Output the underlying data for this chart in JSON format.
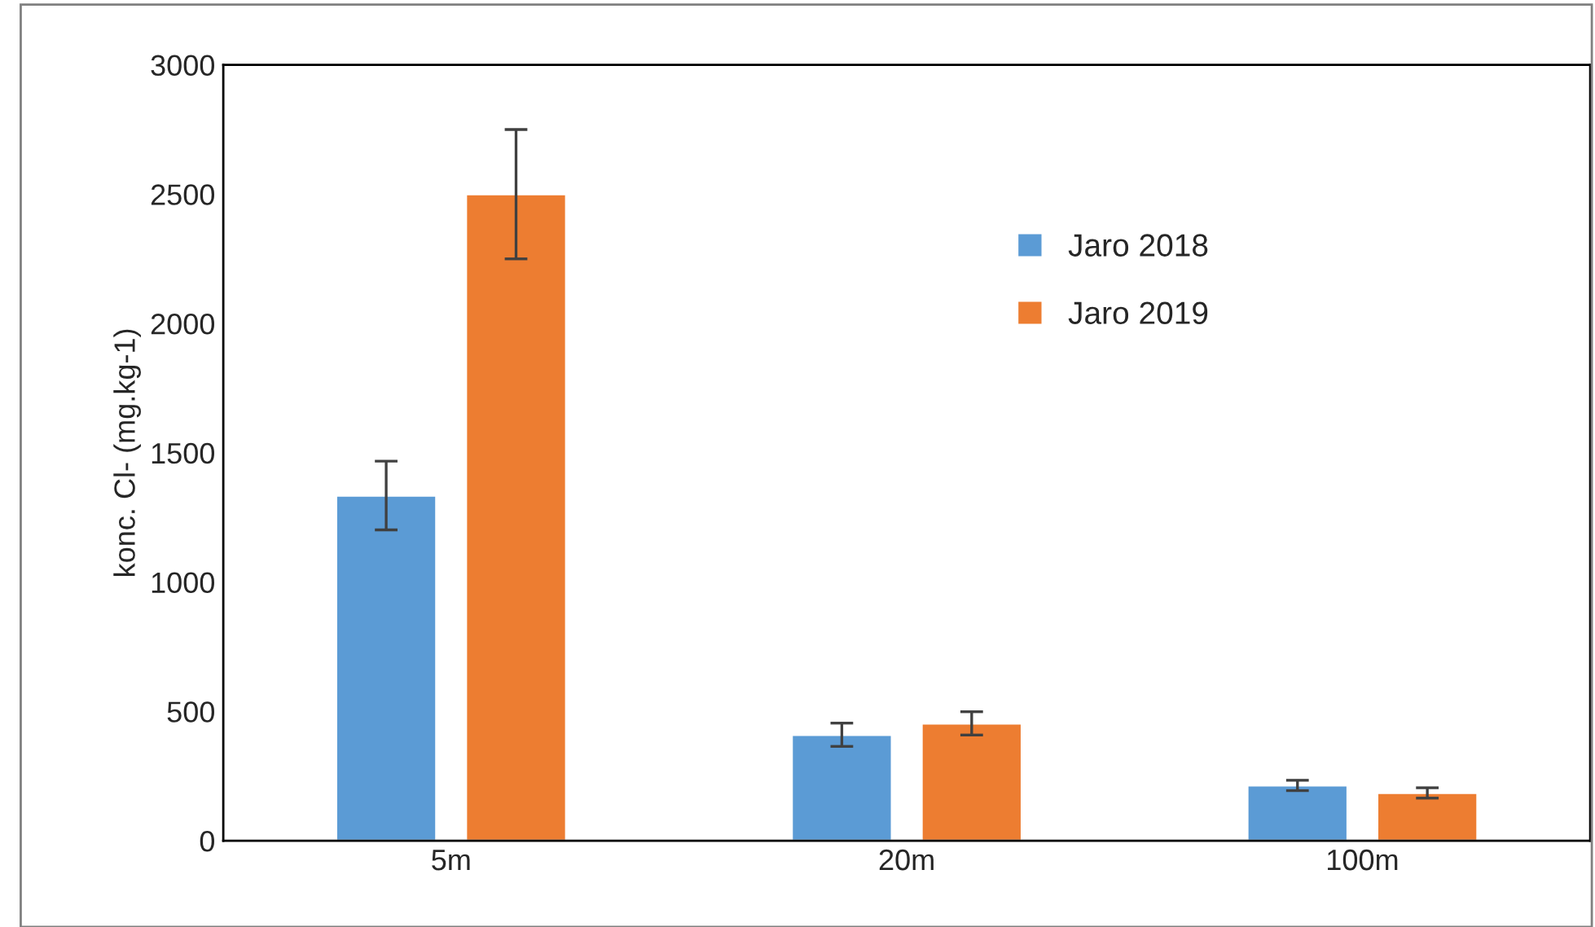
{
  "chart_data": {
    "type": "bar",
    "ylabel": "konc. Cl- (mg.kg-1)",
    "categories": [
      "5m",
      "20m",
      "100m"
    ],
    "series": [
      {
        "name": "Jaro 2018",
        "color": "#5b9bd5",
        "values": [
          1335,
          410,
          214
        ],
        "errors": [
          133,
          45,
          20
        ]
      },
      {
        "name": "Jaro 2019",
        "color": "#ed7d31",
        "values": [
          2500,
          454,
          185
        ],
        "errors": [
          250,
          45,
          20
        ]
      }
    ],
    "ylim": [
      0,
      3000
    ],
    "yticks": [
      0,
      500,
      1000,
      1500,
      2000,
      2500,
      3000
    ],
    "grid": false,
    "legend": "top right"
  }
}
